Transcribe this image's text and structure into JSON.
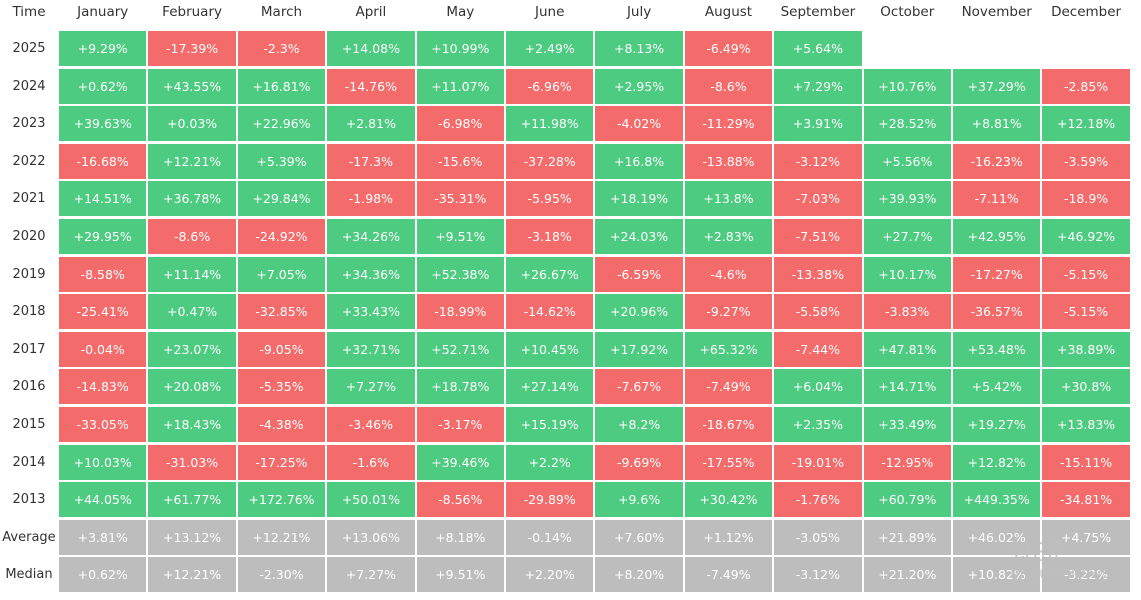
{
  "table": {
    "header": [
      "Time",
      "January",
      "February",
      "March",
      "April",
      "May",
      "June",
      "July",
      "August",
      "September",
      "October",
      "November",
      "December"
    ],
    "rows": [
      [
        "2025",
        "+9.29%",
        "-17.39%",
        "-2.3%",
        "+14.08%",
        "+10.99%",
        "+2.49%",
        "+8.13%",
        "-6.49%",
        "+5.64%"
      ],
      [
        "2024",
        "+0.62%",
        "+43.55%",
        "+16.81%",
        "-14.76%",
        "+11.07%",
        "-6.96%",
        "+2.95%",
        "-8.6%",
        "+7.29%",
        "+10.76%",
        "+37.29%",
        "-2.85%"
      ],
      [
        "2023",
        "+39.63%",
        "+0.03%",
        "+22.96%",
        "+2.81%",
        "-6.98%",
        "+11.98%",
        "-4.02%",
        "-11.29%",
        "+3.91%",
        "+28.52%",
        "+8.81%",
        "+12.18%"
      ],
      [
        "2022",
        "-16.68%",
        "+12.21%",
        "+5.39%",
        "-17.3%",
        "-15.6%",
        "-37.28%",
        "+16.8%",
        "-13.88%",
        "-3.12%",
        "+5.56%",
        "-16.23%",
        "-3.59%"
      ],
      [
        "2021",
        "+14.51%",
        "+36.78%",
        "+29.84%",
        "-1.98%",
        "-35.31%",
        "-5.95%",
        "+18.19%",
        "+13.8%",
        "-7.03%",
        "+39.93%",
        "-7.11%",
        "-18.9%"
      ],
      [
        "2020",
        "+29.95%",
        "-8.6%",
        "-24.92%",
        "+34.26%",
        "+9.51%",
        "-3.18%",
        "+24.03%",
        "+2.83%",
        "-7.51%",
        "+27.7%",
        "+42.95%",
        "+46.92%"
      ],
      [
        "2019",
        "-8.58%",
        "+11.14%",
        "+7.05%",
        "+34.36%",
        "+52.38%",
        "+26.67%",
        "-6.59%",
        "-4.6%",
        "-13.38%",
        "+10.17%",
        "-17.27%",
        "-5.15%"
      ],
      [
        "2018",
        "-25.41%",
        "+0.47%",
        "-32.85%",
        "+33.43%",
        "-18.99%",
        "-14.62%",
        "+20.96%",
        "-9.27%",
        "-5.58%",
        "-3.83%",
        "-36.57%",
        "-5.15%"
      ],
      [
        "2017",
        "-0.04%",
        "+23.07%",
        "-9.05%",
        "+32.71%",
        "+52.71%",
        "+10.45%",
        "+17.92%",
        "+65.32%",
        "-7.44%",
        "+47.81%",
        "+53.48%",
        "+38.89%"
      ],
      [
        "2016",
        "-14.83%",
        "+20.08%",
        "-5.35%",
        "+7.27%",
        "+18.78%",
        "+27.14%",
        "-7.67%",
        "-7.49%",
        "+6.04%",
        "+14.71%",
        "+5.42%",
        "+30.8%"
      ],
      [
        "2015",
        "-33.05%",
        "+18.43%",
        "-4.38%",
        "-3.46%",
        "-3.17%",
        "+15.19%",
        "+8.2%",
        "-18.67%",
        "+2.35%",
        "+33.49%",
        "+19.27%",
        "+13.83%"
      ],
      [
        "2014",
        "+10.03%",
        "-31.03%",
        "-17.25%",
        "-1.6%",
        "+39.46%",
        "+2.2%",
        "-9.69%",
        "-17.55%",
        "-19.01%",
        "-12.95%",
        "+12.82%",
        "-15.11%"
      ],
      [
        "2013",
        "+44.05%",
        "+61.77%",
        "+172.76%",
        "+50.01%",
        "-8.56%",
        "-29.89%",
        "+9.6%",
        "+30.42%",
        "-1.76%",
        "+60.79%",
        "+449.35%",
        "-34.81%"
      ],
      [
        "Average",
        "+3.81%",
        "+13.12%",
        "+12.21%",
        "+13.06%",
        "+8.18%",
        "-0.14%",
        "+7.60%",
        "+1.12%",
        "-3.05%",
        "+21.89%",
        "+46.02%",
        "+4.75%"
      ],
      [
        "Median",
        "+0.62%",
        "+12.21%",
        "-2.30%",
        "+7.27%",
        "+9.51%",
        "+2.20%",
        "+8.20%",
        "-7.49%",
        "-3.12%",
        "+21.20%",
        "+10.82%",
        "-3.22%"
      ]
    ]
  },
  "watermark": {
    "brand": "比推",
    "site": "bitpush.news"
  }
}
